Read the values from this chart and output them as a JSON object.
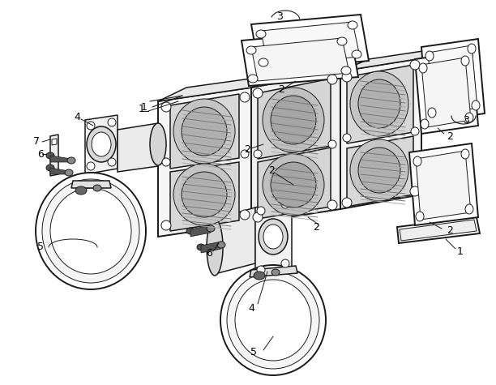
{
  "background_color": "#ffffff",
  "line_color": "#1a1a1a",
  "fig_width": 6.12,
  "fig_height": 4.75,
  "dpi": 100
}
